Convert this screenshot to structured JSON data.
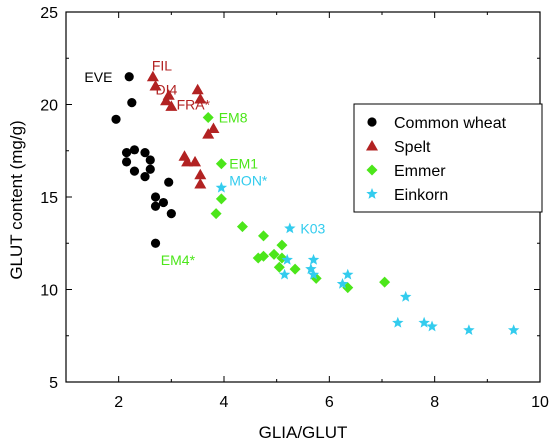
{
  "chart_data": {
    "type": "scatter",
    "xlabel": "GLIA/GLUT",
    "ylabel": "GLUT content (mg/g)",
    "xlim": [
      1,
      10
    ],
    "ylim": [
      5,
      25
    ],
    "xticks": [
      2,
      4,
      6,
      8,
      10
    ],
    "yticks": [
      5,
      10,
      15,
      20,
      25
    ],
    "legend_position": "right",
    "series": [
      {
        "name": "Common wheat",
        "marker": "circle",
        "color": "#000000",
        "points": [
          [
            2.2,
            21.5
          ],
          [
            2.25,
            20.1
          ],
          [
            1.95,
            19.2
          ],
          [
            2.15,
            17.4
          ],
          [
            2.3,
            17.55
          ],
          [
            2.5,
            17.4
          ],
          [
            2.15,
            16.9
          ],
          [
            2.6,
            17.0
          ],
          [
            2.3,
            16.4
          ],
          [
            2.6,
            16.5
          ],
          [
            2.5,
            16.1
          ],
          [
            2.95,
            15.8
          ],
          [
            2.7,
            15.0
          ],
          [
            2.85,
            14.7
          ],
          [
            2.7,
            14.5
          ],
          [
            3.0,
            14.1
          ],
          [
            2.7,
            12.5
          ]
        ]
      },
      {
        "name": "Spelt",
        "marker": "triangle",
        "color": "#b22222",
        "points": [
          [
            2.65,
            21.5
          ],
          [
            2.7,
            21.0
          ],
          [
            2.95,
            20.5
          ],
          [
            2.9,
            20.2
          ],
          [
            3.0,
            19.9
          ],
          [
            3.5,
            20.8
          ],
          [
            3.55,
            20.3
          ],
          [
            3.8,
            18.7
          ],
          [
            3.7,
            18.4
          ],
          [
            3.25,
            17.2
          ],
          [
            3.3,
            16.9
          ],
          [
            3.45,
            16.9
          ],
          [
            3.55,
            16.2
          ],
          [
            3.55,
            15.7
          ]
        ]
      },
      {
        "name": "Emmer",
        "marker": "diamond",
        "color": "#4ce61a",
        "points": [
          [
            3.7,
            19.3
          ],
          [
            3.95,
            16.8
          ],
          [
            3.95,
            14.9
          ],
          [
            3.85,
            14.1
          ],
          [
            4.35,
            13.4
          ],
          [
            4.75,
            12.9
          ],
          [
            5.1,
            12.4
          ],
          [
            4.95,
            11.9
          ],
          [
            5.1,
            11.7
          ],
          [
            4.75,
            11.8
          ],
          [
            4.65,
            11.7
          ],
          [
            5.05,
            11.2
          ],
          [
            5.35,
            11.1
          ],
          [
            5.75,
            10.6
          ],
          [
            6.35,
            10.1
          ],
          [
            7.05,
            10.4
          ]
        ]
      },
      {
        "name": "Einkorn",
        "marker": "star",
        "color": "#33ccee",
        "points": [
          [
            3.95,
            15.5
          ],
          [
            5.25,
            13.3
          ],
          [
            5.2,
            11.6
          ],
          [
            5.7,
            11.6
          ],
          [
            5.65,
            11.1
          ],
          [
            5.15,
            10.8
          ],
          [
            5.7,
            10.8
          ],
          [
            6.35,
            10.8
          ],
          [
            6.25,
            10.3
          ],
          [
            7.45,
            9.6
          ],
          [
            7.3,
            8.2
          ],
          [
            7.8,
            8.2
          ],
          [
            7.95,
            8.0
          ],
          [
            8.65,
            7.8
          ],
          [
            9.5,
            7.8
          ]
        ]
      }
    ],
    "annotations": [
      {
        "text": "EVE",
        "x": 1.35,
        "y": 21.5,
        "color": "#000000"
      },
      {
        "text": "FIL",
        "x": 2.63,
        "y": 22.1,
        "color": "#b22222"
      },
      {
        "text": "DI4",
        "x": 2.7,
        "y": 20.8,
        "color": "#b22222"
      },
      {
        "text": "FRA*",
        "x": 3.1,
        "y": 20.0,
        "color": "#b22222"
      },
      {
        "text": "EM8",
        "x": 3.9,
        "y": 19.3,
        "color": "#4ce61a"
      },
      {
        "text": "EM1",
        "x": 4.1,
        "y": 16.8,
        "color": "#4ce61a"
      },
      {
        "text": "MON*",
        "x": 4.1,
        "y": 15.9,
        "color": "#33ccee"
      },
      {
        "text": "K03",
        "x": 5.45,
        "y": 13.3,
        "color": "#33ccee"
      },
      {
        "text": "EM4*",
        "x": 2.8,
        "y": 11.6,
        "color": "#4ce61a"
      }
    ]
  }
}
